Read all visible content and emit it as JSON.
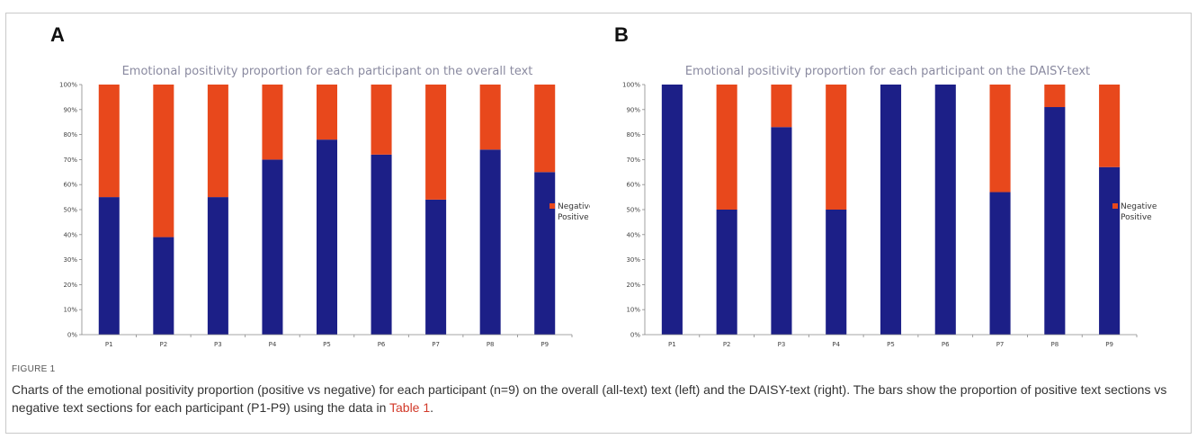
{
  "figure": {
    "label": "FIGURE 1",
    "caption_part1": "Charts of the emotional positivity proportion (positive vs negative) for each participant (n=9) on the overall (all-text) text (left) and the DAISY-text (right). The bars show the proportion of positive text sections vs negative text sections for each participant (P1-P9) using the data in ",
    "caption_link": "Table 1",
    "caption_part2": "."
  },
  "colors": {
    "positive": "#1c1f87",
    "negative": "#e8481c"
  },
  "chart_data": [
    {
      "panel": "A",
      "type": "bar",
      "stacked": true,
      "title": "Emotional positivity proportion for each participant on the overall text",
      "categories": [
        "P1",
        "P2",
        "P3",
        "P4",
        "P5",
        "P6",
        "P7",
        "P8",
        "P9"
      ],
      "series": [
        {
          "name": "Positive",
          "values": [
            55,
            39,
            55,
            70,
            78,
            72,
            54,
            74,
            65
          ]
        },
        {
          "name": "Negative",
          "values": [
            45,
            61,
            45,
            30,
            22,
            28,
            46,
            26,
            35
          ]
        }
      ],
      "yticks": [
        "0%",
        "10%",
        "20%",
        "30%",
        "40%",
        "50%",
        "60%",
        "70%",
        "80%",
        "90%",
        "100%"
      ],
      "ylim": [
        0,
        100
      ],
      "legend": [
        "Negative",
        "Positive"
      ],
      "legend_position": "right"
    },
    {
      "panel": "B",
      "type": "bar",
      "stacked": true,
      "title": "Emotional positivity proportion for each participant on the DAISY-text",
      "categories": [
        "P1",
        "P2",
        "P3",
        "P4",
        "P5",
        "P6",
        "P7",
        "P8",
        "P9"
      ],
      "series": [
        {
          "name": "Positive",
          "values": [
            100,
            50,
            83,
            50,
            100,
            100,
            57,
            91,
            67
          ]
        },
        {
          "name": "Negative",
          "values": [
            0,
            50,
            17,
            50,
            0,
            0,
            43,
            9,
            33
          ]
        }
      ],
      "yticks": [
        "0%",
        "10%",
        "20%",
        "30%",
        "40%",
        "50%",
        "60%",
        "70%",
        "80%",
        "90%",
        "100%"
      ],
      "ylim": [
        0,
        100
      ],
      "legend": [
        "Negative",
        "Positive"
      ],
      "legend_position": "right"
    }
  ]
}
